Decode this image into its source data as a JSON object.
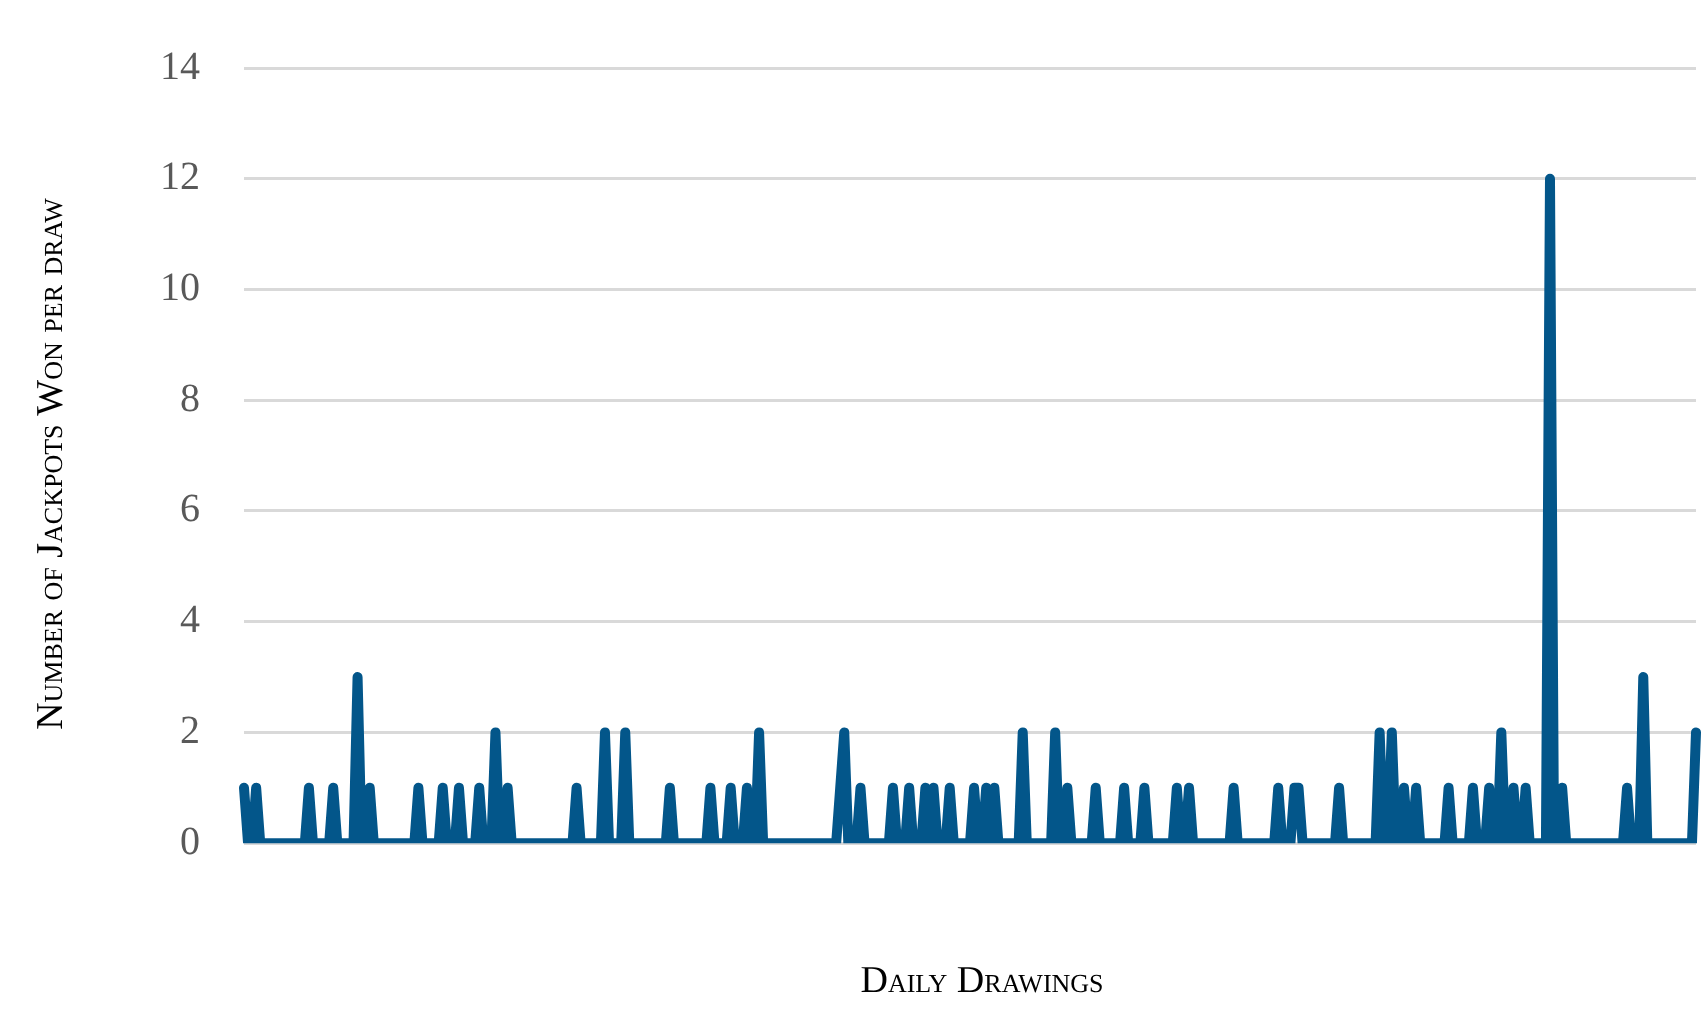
{
  "chart_data": {
    "type": "line",
    "xlabel": "Daily Drawings",
    "ylabel": "Number of Jackpots Won per draw",
    "color": "#03568a",
    "ylim": [
      0,
      14
    ],
    "yticks": [
      0,
      2,
      4,
      6,
      8,
      10,
      12,
      14
    ],
    "grid": "y",
    "marker": "none",
    "line_style": "solid",
    "categories": [
      null,
      null,
      null,
      null,
      null,
      null,
      null,
      null,
      null,
      null,
      null,
      null,
      null,
      null,
      null,
      null,
      null,
      null,
      null,
      null,
      null,
      null,
      null,
      null,
      null,
      null,
      null,
      null,
      null,
      null,
      null,
      null,
      null,
      null,
      null,
      null,
      null,
      null,
      null,
      null,
      null,
      null,
      null,
      null,
      null,
      null,
      null,
      null,
      null,
      null,
      null,
      null,
      null,
      null,
      null,
      null,
      null,
      null,
      null,
      null,
      null,
      null,
      null,
      null,
      null,
      null,
      null,
      null,
      null,
      null,
      null,
      null,
      null,
      null,
      null,
      null,
      null,
      null,
      null,
      null,
      null,
      null,
      null,
      null,
      null,
      null,
      null,
      null,
      null,
      null,
      null,
      null,
      null,
      null,
      null,
      null,
      null,
      null,
      null,
      null,
      null,
      null,
      null,
      null,
      null,
      null,
      null,
      null,
      null,
      null,
      null,
      null,
      null,
      null,
      null,
      null,
      null,
      null,
      null,
      null,
      null,
      null,
      null,
      null,
      null,
      null,
      null,
      null,
      null,
      null,
      null,
      null,
      null,
      null,
      null,
      null,
      null,
      null,
      null,
      null,
      null,
      null,
      null,
      null,
      null,
      null,
      null,
      null,
      null,
      null,
      null,
      null,
      null,
      null,
      null,
      null,
      null,
      null,
      null,
      null,
      null,
      null,
      null,
      null,
      null,
      null,
      null,
      null,
      null,
      null,
      null,
      null,
      null,
      null,
      null,
      null,
      null,
      null,
      null,
      null,
      null,
      null,
      null,
      null,
      null,
      null,
      null,
      null,
      null,
      null,
      null,
      null,
      null,
      null,
      null,
      null,
      null,
      null,
      null,
      null,
      null,
      null,
      null,
      null,
      null,
      null,
      null,
      null,
      null,
      null,
      null,
      null,
      null,
      null,
      null,
      null,
      null,
      null,
      null,
      null,
      null,
      null,
      null,
      null,
      null,
      null,
      null,
      null,
      null,
      null,
      null,
      null,
      null,
      null,
      null,
      null,
      null,
      null,
      null,
      null,
      null,
      null,
      null,
      null,
      null,
      null,
      null,
      null,
      null,
      null,
      null,
      null,
      null,
      null,
      null,
      null,
      null,
      null,
      null,
      null,
      null,
      null,
      null,
      null,
      null,
      null,
      null,
      null,
      null,
      null,
      null,
      null,
      null,
      null,
      null,
      null,
      null,
      null,
      null,
      null,
      null,
      null,
      null,
      null,
      null,
      null,
      null,
      null,
      null,
      null,
      null,
      null,
      null,
      null,
      null,
      null,
      null,
      null,
      null,
      null,
      null,
      null,
      null,
      null,
      null,
      null,
      null,
      null,
      null,
      null,
      null,
      null,
      null,
      null,
      null,
      null,
      null,
      null,
      null,
      null,
      null,
      null,
      null,
      null,
      null,
      null,
      null,
      null,
      null,
      null,
      null,
      null,
      null,
      null,
      null,
      null,
      null,
      null,
      null,
      null,
      null,
      null,
      null,
      null,
      null,
      null,
      null,
      null,
      null,
      null,
      null,
      null,
      null,
      null,
      null,
      null,
      null,
      null,
      null
    ],
    "values": [
      1,
      0,
      0,
      1,
      0,
      0,
      0,
      0,
      0,
      0,
      0,
      0,
      0,
      0,
      0,
      0,
      1,
      0,
      0,
      0,
      0,
      0,
      1,
      0,
      0,
      0,
      0,
      0,
      3,
      0,
      0,
      1,
      0,
      0,
      0,
      0,
      0,
      0,
      0,
      0,
      0,
      0,
      0,
      1,
      0,
      0,
      0,
      0,
      0,
      1,
      0,
      0,
      0,
      1,
      0,
      0,
      0,
      0,
      1,
      0,
      0,
      0,
      2,
      0,
      0,
      1,
      0,
      0,
      0,
      0,
      0,
      0,
      0,
      0,
      0,
      0,
      0,
      0,
      0,
      0,
      0,
      0,
      1,
      0,
      0,
      0,
      0,
      0,
      0,
      2,
      0,
      0,
      0,
      0,
      2,
      0,
      0,
      0,
      0,
      0,
      0,
      0,
      0,
      0,
      0,
      1,
      0,
      0,
      0,
      0,
      0,
      0,
      0,
      0,
      0,
      1,
      0,
      0,
      0,
      0,
      1,
      0,
      0,
      0,
      1,
      0,
      0,
      2,
      0,
      0,
      0,
      0,
      0,
      0,
      0,
      0,
      0,
      0,
      0,
      0,
      0,
      0,
      0,
      0,
      0,
      0,
      0,
      1,
      2,
      0,
      0,
      0,
      1,
      0,
      0,
      0,
      0,
      0,
      0,
      0,
      1,
      0,
      0,
      0,
      1,
      0,
      0,
      0,
      1,
      0,
      1,
      0,
      0,
      0,
      1,
      0,
      0,
      0,
      0,
      0,
      1,
      0,
      0,
      1,
      0,
      1,
      0,
      0,
      0,
      0,
      0,
      0,
      2,
      0,
      0,
      0,
      0,
      0,
      0,
      0,
      2,
      0,
      0,
      1,
      0,
      0,
      0,
      0,
      0,
      0,
      1,
      0,
      0,
      0,
      0,
      0,
      0,
      1,
      0,
      0,
      0,
      0,
      1,
      0,
      0,
      0,
      0,
      0,
      0,
      0,
      1,
      0,
      0,
      1,
      0,
      0,
      0,
      0,
      0,
      0,
      0,
      0,
      0,
      0,
      1,
      0,
      0,
      0,
      0,
      0,
      0,
      0,
      0,
      0,
      0,
      1,
      0,
      0,
      0,
      1,
      1,
      0,
      0,
      0,
      0,
      0,
      0,
      0,
      0,
      0,
      1,
      0,
      0,
      0,
      0,
      0,
      0,
      0,
      0,
      0,
      2,
      0,
      0,
      2,
      0,
      0,
      1,
      0,
      0,
      1,
      0,
      0,
      0,
      0,
      0,
      0,
      0,
      1,
      0,
      0,
      0,
      0,
      0,
      1,
      0,
      0,
      0,
      1,
      0,
      0,
      2,
      0,
      0,
      1,
      0,
      0,
      1,
      0,
      0,
      0,
      0,
      0,
      12,
      0,
      0,
      1,
      0,
      0,
      0,
      0,
      0,
      0,
      0,
      0,
      0,
      0,
      0,
      0,
      0,
      0,
      0,
      1,
      0,
      0,
      0,
      3,
      0,
      0,
      0,
      0,
      0,
      0,
      0,
      0,
      0,
      0,
      0,
      0,
      2
    ]
  }
}
